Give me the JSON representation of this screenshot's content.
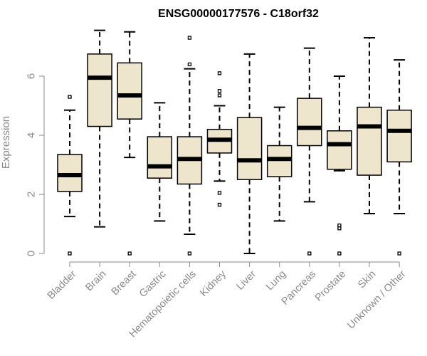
{
  "chart_data": {
    "type": "boxplot",
    "title": "ENSG00000177576 - C18orf32",
    "xlabel": "",
    "ylabel": "Expression",
    "ylim": [
      0,
      7.6
    ],
    "yticks": [
      0,
      2,
      4,
      6
    ],
    "box_color": "#ede6cc",
    "stroke_color": "#000000",
    "categories": [
      "Bladder",
      "Brain",
      "Breast",
      "Gastric",
      "Hematopoietic cells",
      "Kidney",
      "Liver",
      "Lung",
      "Pancreas",
      "Prostate",
      "Skin",
      "Unknown / Other"
    ],
    "boxes": [
      {
        "label": "Bladder",
        "whisker_low": 1.25,
        "q1": 2.1,
        "median": 2.65,
        "q3": 3.35,
        "whisker_high": 4.85,
        "outliers": [
          0,
          5.3
        ]
      },
      {
        "label": "Brain",
        "whisker_low": 0.9,
        "q1": 4.3,
        "median": 5.95,
        "q3": 6.75,
        "whisker_high": 7.55,
        "outliers": []
      },
      {
        "label": "Breast",
        "whisker_low": 3.25,
        "q1": 4.55,
        "median": 5.35,
        "q3": 6.45,
        "whisker_high": 7.5,
        "outliers": [
          0
        ]
      },
      {
        "label": "Gastric",
        "whisker_low": 1.1,
        "q1": 2.55,
        "median": 2.95,
        "q3": 3.95,
        "whisker_high": 5.1,
        "outliers": []
      },
      {
        "label": "Hematopoietic cells",
        "whisker_low": 0.65,
        "q1": 2.35,
        "median": 3.2,
        "q3": 3.95,
        "whisker_high": 6.25,
        "outliers": [
          0,
          6.4,
          7.3
        ]
      },
      {
        "label": "Kidney",
        "whisker_low": 2.45,
        "q1": 3.4,
        "median": 3.85,
        "q3": 4.2,
        "whisker_high": 5.0,
        "outliers": [
          1.65,
          2.05,
          5.35,
          5.5,
          6.1
        ]
      },
      {
        "label": "Liver",
        "whisker_low": 0.0,
        "q1": 2.5,
        "median": 3.15,
        "q3": 4.6,
        "whisker_high": 6.75,
        "outliers": []
      },
      {
        "label": "Lung",
        "whisker_low": 1.1,
        "q1": 2.6,
        "median": 3.2,
        "q3": 3.65,
        "whisker_high": 4.95,
        "outliers": []
      },
      {
        "label": "Pancreas",
        "whisker_low": 1.75,
        "q1": 3.65,
        "median": 4.25,
        "q3": 5.25,
        "whisker_high": 6.95,
        "outliers": [
          0
        ]
      },
      {
        "label": "Prostate",
        "whisker_low": 2.8,
        "q1": 2.85,
        "median": 3.7,
        "q3": 4.15,
        "whisker_high": 6.0,
        "outliers": [
          0,
          0.85,
          0.95
        ]
      },
      {
        "label": "Skin",
        "whisker_low": 1.35,
        "q1": 2.65,
        "median": 4.3,
        "q3": 4.95,
        "whisker_high": 7.3,
        "outliers": []
      },
      {
        "label": "Unknown / Other",
        "whisker_low": 1.35,
        "q1": 3.1,
        "median": 4.15,
        "q3": 4.85,
        "whisker_high": 6.55,
        "outliers": [
          0
        ]
      }
    ]
  }
}
